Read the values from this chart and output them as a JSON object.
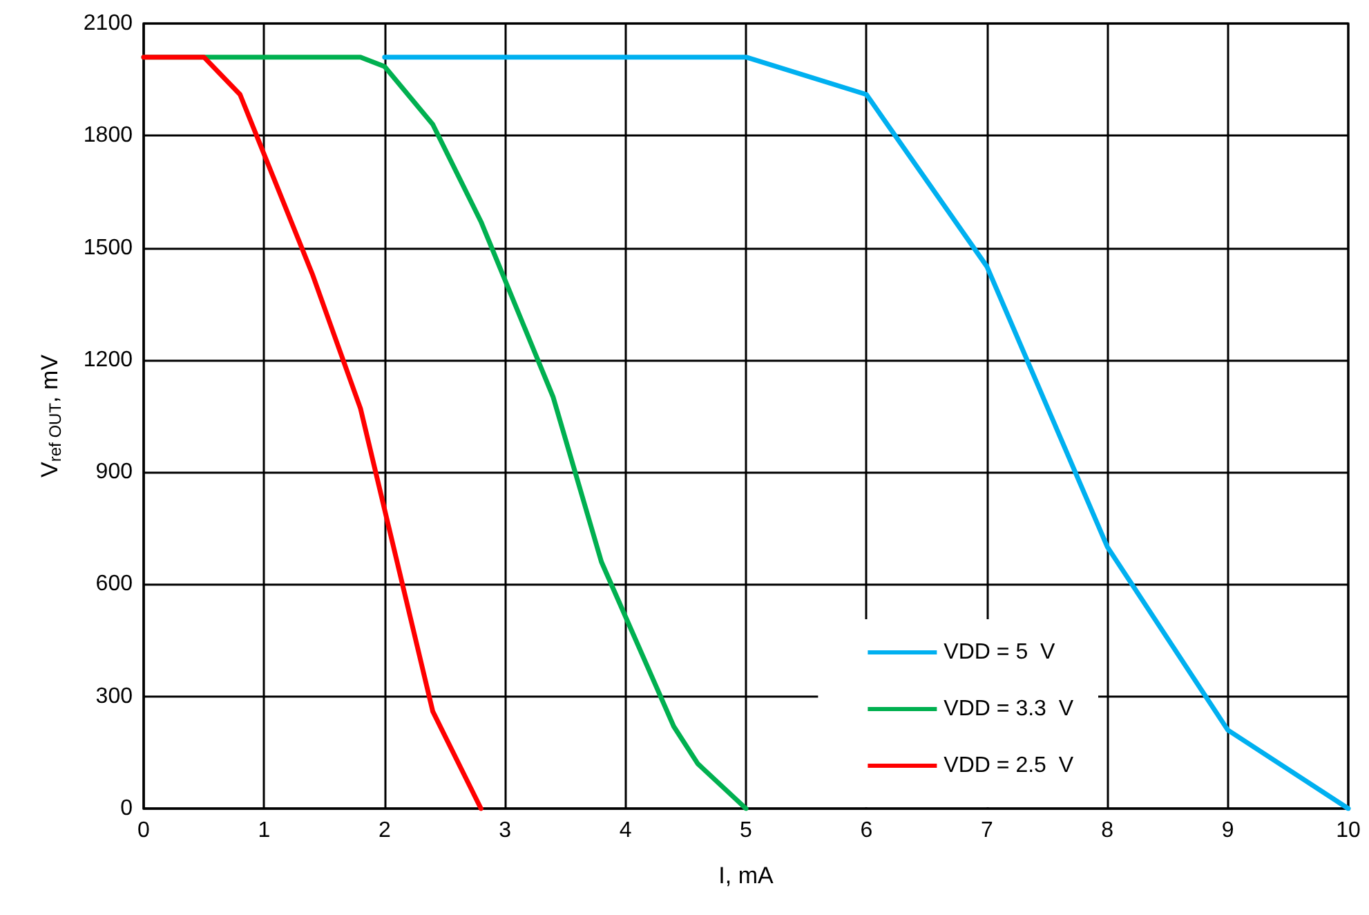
{
  "chart_data": {
    "type": "line",
    "xlabel": "I, mA",
    "ylabel": "V$_{ref OUT}$, mV",
    "xlim": [
      0,
      10
    ],
    "xticks": [
      0,
      1,
      2,
      3,
      4,
      5,
      6,
      7,
      8,
      9,
      10
    ],
    "ylim": [
      0,
      2100
    ],
    "yticks": [
      0,
      300,
      600,
      900,
      1200,
      1500,
      1800,
      2100
    ],
    "grid": true,
    "legend": "bottom right",
    "marker": "none",
    "line_style": "solid",
    "series": [
      {
        "name": "VDD = 5  V",
        "color": "#00b0f0",
        "x": [
          2,
          5,
          6,
          7,
          8,
          9,
          10
        ],
        "values": [
          2010,
          2010,
          1910,
          1450,
          700,
          210,
          0
        ]
      },
      {
        "name": "VDD = 3.3  V",
        "color": "#00b050",
        "x": [
          0,
          1.8,
          2,
          2.4,
          2.8,
          3.4,
          3.8,
          4.4,
          4.6,
          5
        ],
        "values": [
          2010,
          2010,
          1985,
          1830,
          1570,
          1100,
          660,
          220,
          120,
          0
        ]
      },
      {
        "name": "VDD = 2.5  V",
        "color": "#ff0000",
        "x": [
          0,
          0.5,
          0.8,
          1.4,
          1.8,
          2.4,
          2.8
        ],
        "values": [
          2010,
          2010,
          1910,
          1430,
          1070,
          260,
          0
        ]
      }
    ]
  }
}
